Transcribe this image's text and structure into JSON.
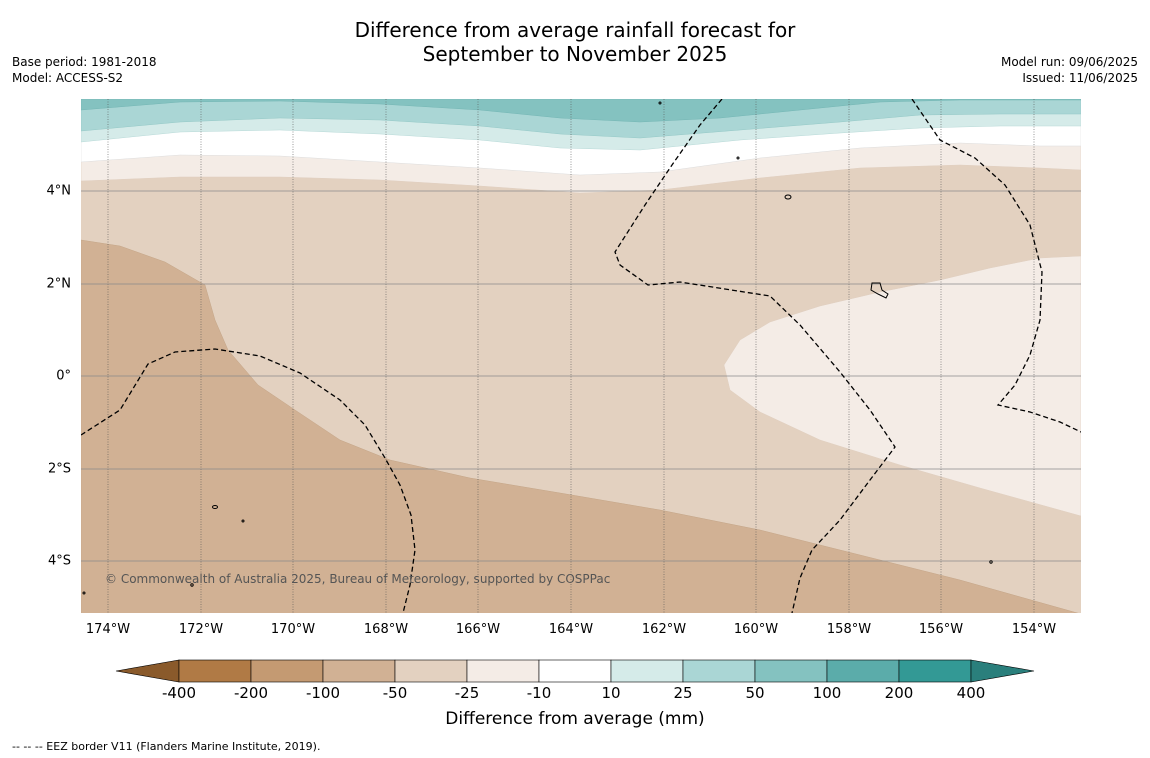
{
  "title": {
    "line1": "Difference from average rainfall forecast for",
    "line2": "September to November 2025"
  },
  "info_left": {
    "base_period": "Base period: 1981-2018",
    "model": "Model: ACCESS-S2"
  },
  "info_right": {
    "model_run": "Model run: 09/06/2025",
    "issued": "Issued: 11/06/2025"
  },
  "map": {
    "lat_labels": [
      "4°N",
      "2°N",
      "0°",
      "2°S",
      "4°S"
    ],
    "lon_labels": [
      "174°W",
      "172°W",
      "170°W",
      "168°W",
      "166°W",
      "164°W",
      "162°W",
      "160°W",
      "158°W",
      "156°W",
      "154°W"
    ],
    "copyright": "© Commonwealth of Australia 2025, Bureau of Meteorology, supported by COSPPac"
  },
  "colorbar": {
    "title": "Difference from average (mm)",
    "tick_labels": [
      "-400",
      "-200",
      "-100",
      "-50",
      "-25",
      "-10",
      "10",
      "25",
      "50",
      "100",
      "200",
      "400"
    ],
    "colors": [
      "#8a5a2b",
      "#b07a45",
      "#c49a72",
      "#d1b194",
      "#e3d1c0",
      "#f4ece6",
      "#ffffff",
      "#d5ebe9",
      "#aad6d5",
      "#84c2c0",
      "#5bacaa",
      "#339995",
      "#2a7f7c"
    ]
  },
  "footer": {
    "eez_note": "--  --  -- EEZ border V11 (Flanders Marine Institute, 2019)."
  }
}
